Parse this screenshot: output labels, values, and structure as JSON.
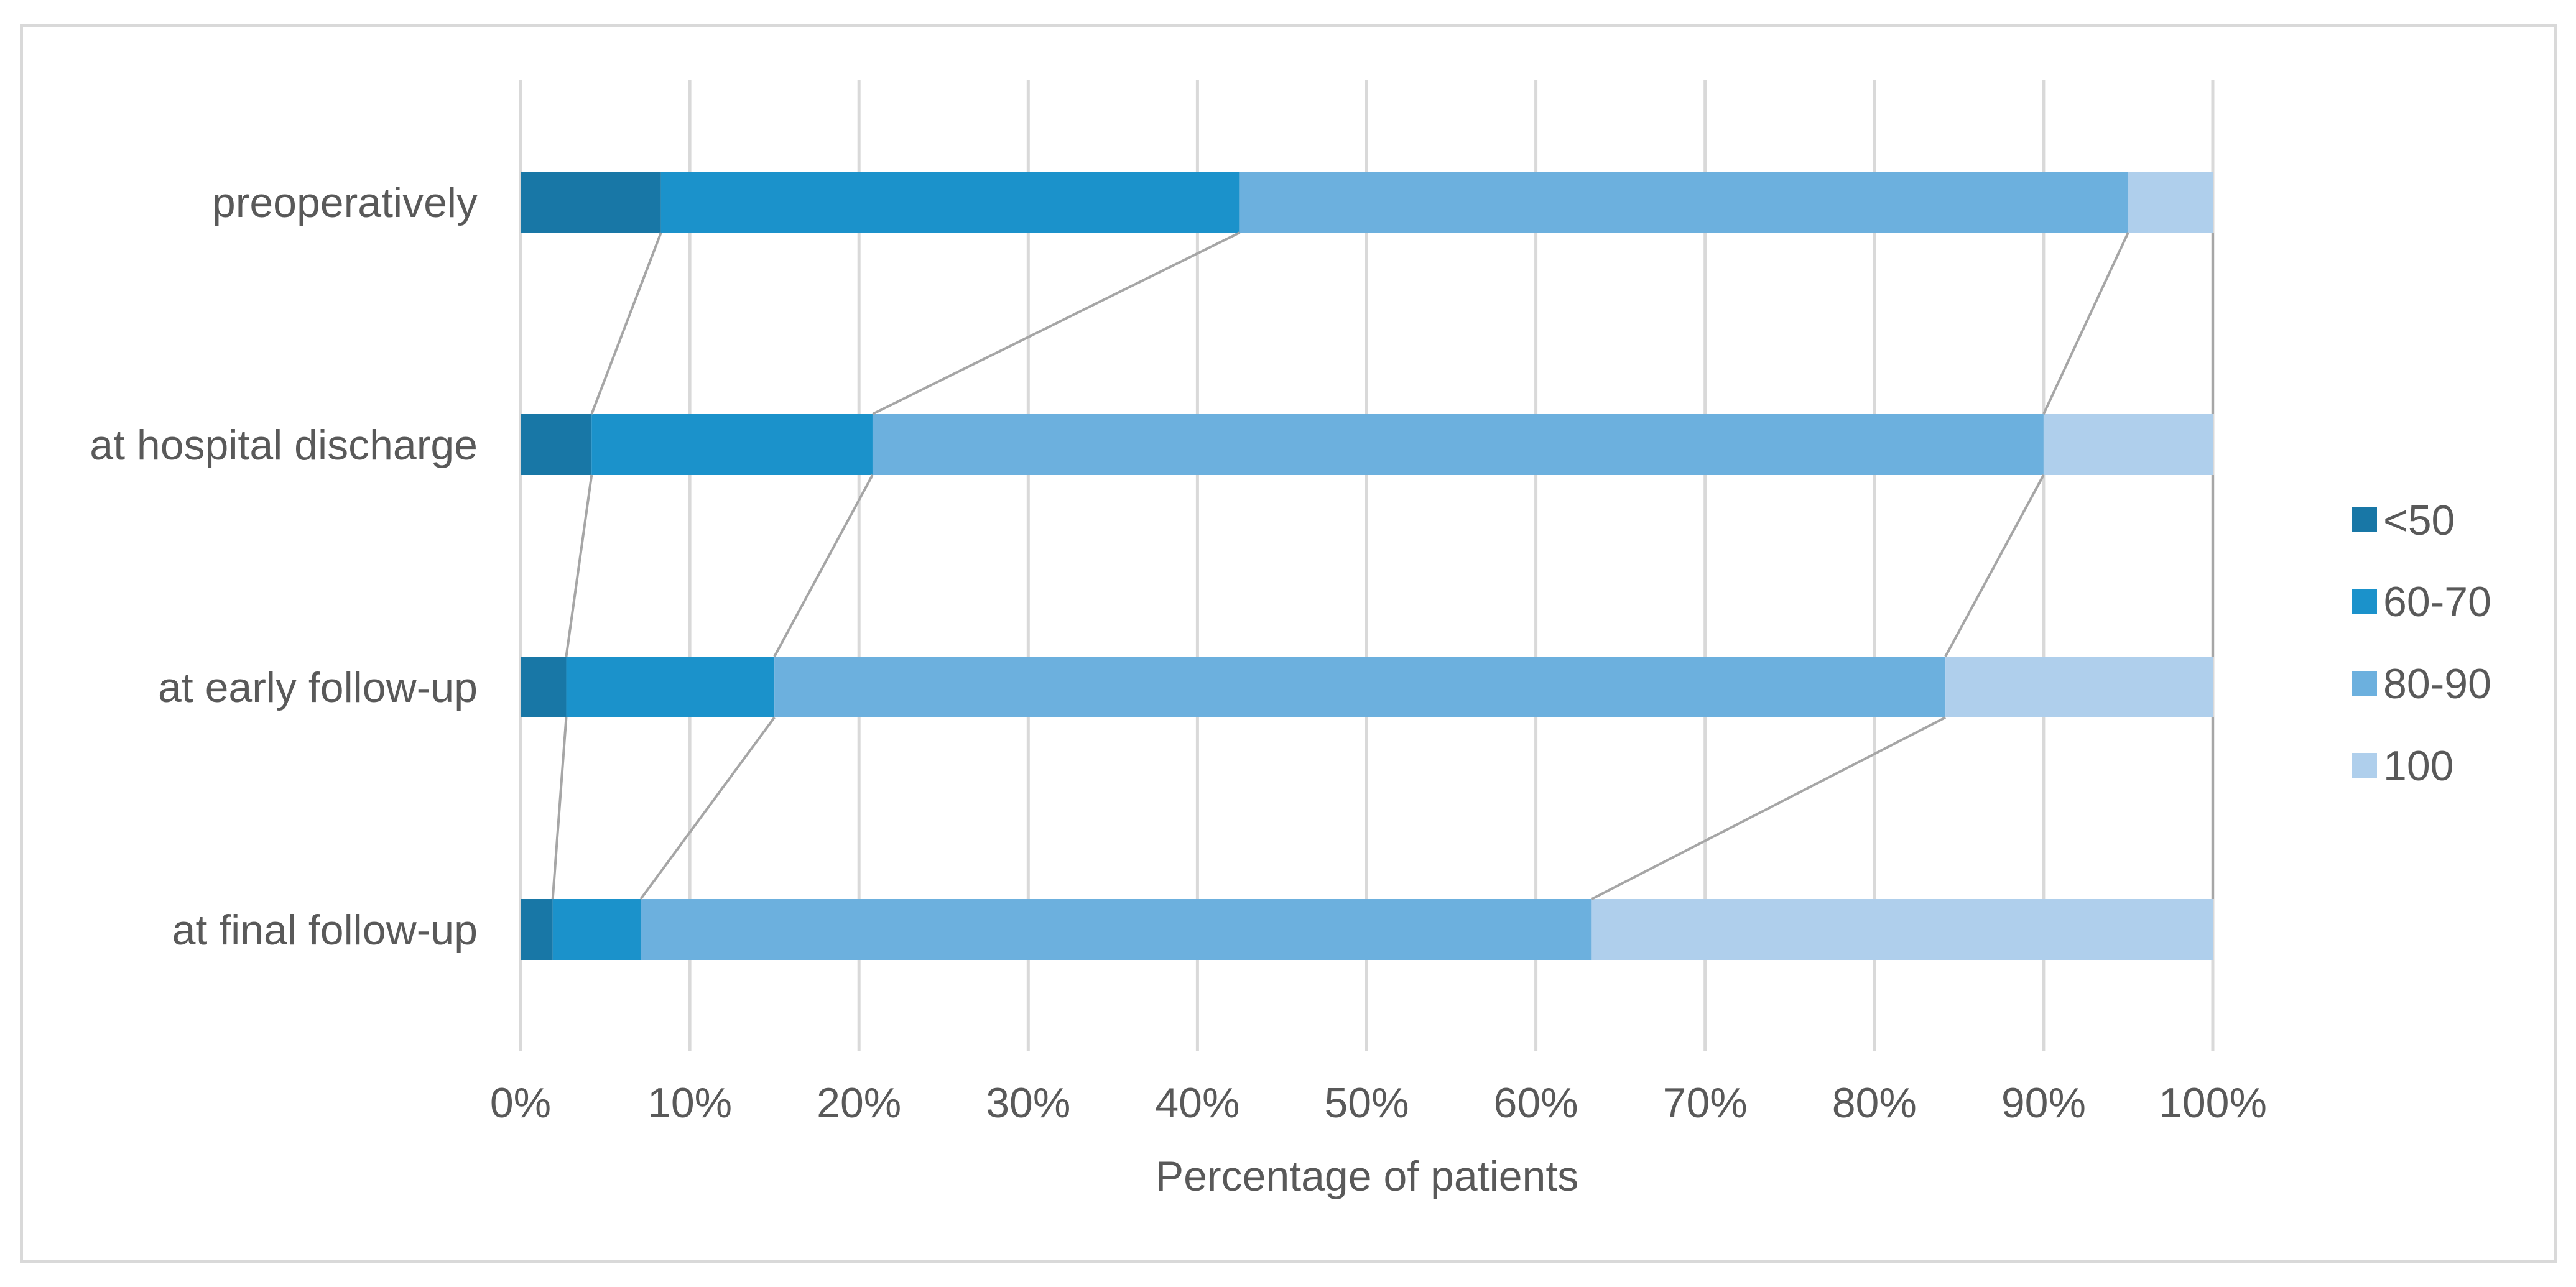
{
  "chart_data": {
    "type": "bar",
    "orientation": "horizontal",
    "stacked": true,
    "percent": true,
    "categories": [
      "preoperatively",
      "at hospital discharge",
      "at early follow-up",
      "at final follow-up"
    ],
    "series": [
      {
        "name": "<50",
        "color": "#1877a6",
        "values": [
          8.3,
          4.2,
          2.7,
          1.9
        ]
      },
      {
        "name": "60-70",
        "color": "#1b92cb",
        "values": [
          34.2,
          16.6,
          12.3,
          5.2
        ]
      },
      {
        "name": "80-90",
        "color": "#6cb0de",
        "values": [
          52.5,
          69.2,
          69.2,
          56.2
        ]
      },
      {
        "name": "100",
        "color": "#afcfec",
        "values": [
          5.0,
          10.0,
          15.8,
          36.7
        ]
      }
    ],
    "xlabel": "Percentage of patients",
    "ylabel": "",
    "xlim": [
      0,
      100
    ],
    "xticks": [
      "0%",
      "10%",
      "20%",
      "30%",
      "40%",
      "50%",
      "60%",
      "70%",
      "80%",
      "90%",
      "100%"
    ],
    "grid": "vertical",
    "legend_position": "right",
    "series_lines": true,
    "series_line_color": "#a6a6a6",
    "grid_color": "#d9d9d9"
  }
}
